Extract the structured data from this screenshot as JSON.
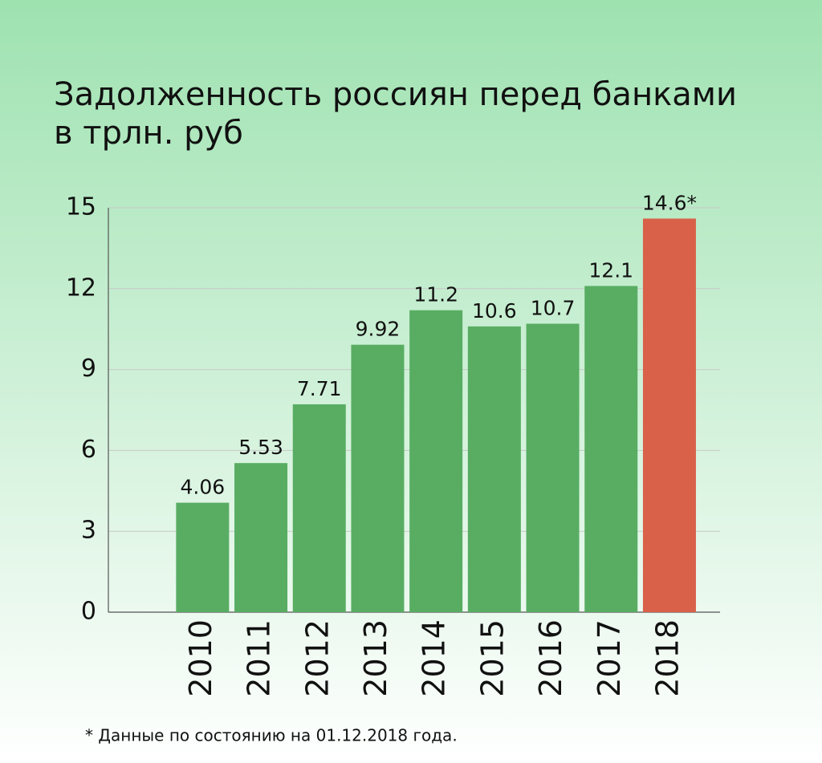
{
  "chart_data": {
    "type": "bar",
    "title": "Задолженность россиян перед банками",
    "subtitle": "в трлн. руб",
    "categories": [
      "2010",
      "2011",
      "2012",
      "2013",
      "2014",
      "2015",
      "2016",
      "2017",
      "2018"
    ],
    "values": [
      4.06,
      5.53,
      7.71,
      9.92,
      11.2,
      10.6,
      10.7,
      12.1,
      14.6
    ],
    "value_labels": [
      "4.06",
      "5.53",
      "7.71",
      "9.92",
      "11.2",
      "10.6",
      "10.7",
      "12.1",
      "14.6*"
    ],
    "colors": [
      "#58ad62",
      "#58ad62",
      "#58ad62",
      "#58ad62",
      "#58ad62",
      "#58ad62",
      "#58ad62",
      "#58ad62",
      "#d9614a"
    ],
    "ylim": [
      0,
      15
    ],
    "yticks": [
      0,
      3,
      6,
      9,
      12,
      15
    ],
    "grid": true,
    "footnote": "* Данные по состоянию на 01.12.2018 года."
  }
}
